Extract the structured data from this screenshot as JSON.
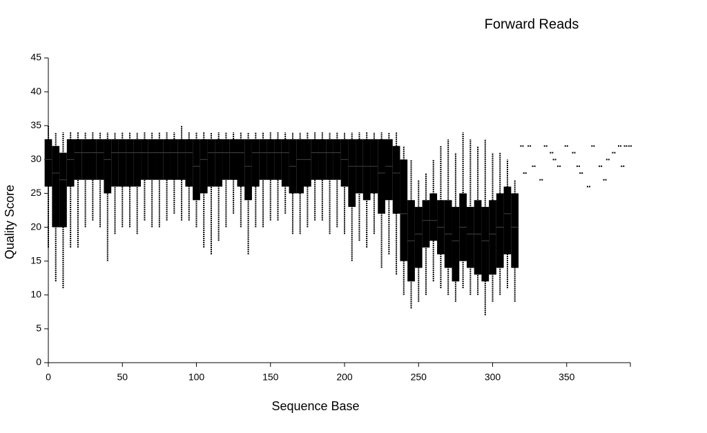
{
  "chart_data": {
    "type": "box",
    "title": "Forward Reads",
    "x_label": "Sequence Base",
    "y_label": "Quality Score",
    "xlim": [
      0,
      393
    ],
    "ylim": [
      0,
      45
    ],
    "xticks": [
      0,
      50,
      100,
      150,
      200,
      250,
      300,
      350
    ],
    "yticks": [
      0,
      5,
      10,
      15,
      20,
      25,
      30,
      35,
      40,
      45
    ],
    "color": "#000000",
    "boxes": {
      "x": [
        0,
        5,
        10,
        15,
        20,
        25,
        30,
        35,
        40,
        45,
        50,
        55,
        60,
        65,
        70,
        75,
        80,
        85,
        90,
        95,
        100,
        105,
        110,
        115,
        120,
        125,
        130,
        135,
        140,
        145,
        150,
        155,
        160,
        165,
        170,
        175,
        180,
        185,
        190,
        195,
        200,
        205,
        210,
        215,
        220,
        225,
        230,
        235,
        240,
        245,
        250,
        255,
        260,
        265,
        270,
        275,
        280,
        285,
        290,
        295,
        300,
        305,
        310,
        315
      ],
      "low": [
        17,
        12,
        11,
        17,
        17,
        20,
        21,
        20,
        15,
        19,
        20,
        20,
        19,
        21,
        20,
        20,
        21,
        22,
        21,
        21,
        20,
        17,
        16,
        18,
        20,
        22,
        20,
        16,
        20,
        20,
        21,
        21,
        22,
        19,
        19,
        20,
        21,
        21,
        19,
        20,
        19,
        15,
        18,
        17,
        19,
        14,
        16,
        13,
        10,
        8,
        9,
        10,
        12,
        11,
        10,
        9,
        11,
        10,
        10,
        7,
        9,
        10,
        11,
        9
      ],
      "q1": [
        26,
        20,
        20,
        26,
        27,
        27,
        27,
        27,
        25,
        26,
        26,
        26,
        26,
        27,
        27,
        27,
        27,
        27,
        27,
        26,
        24,
        25,
        26,
        26,
        27,
        27,
        26,
        24,
        26,
        27,
        27,
        27,
        26,
        25,
        25,
        26,
        27,
        27,
        27,
        27,
        26,
        23,
        25,
        24,
        25,
        22,
        24,
        22,
        15,
        12,
        14,
        17,
        18,
        16,
        14,
        12,
        15,
        14,
        13,
        12,
        13,
        14,
        16,
        14
      ],
      "median": [
        30,
        28,
        27,
        30,
        31,
        31,
        31,
        31,
        30,
        31,
        31,
        31,
        31,
        31,
        31,
        31,
        31,
        31,
        31,
        31,
        29,
        30,
        31,
        31,
        31,
        31,
        31,
        29,
        31,
        31,
        31,
        31,
        31,
        29,
        30,
        30,
        31,
        31,
        31,
        31,
        30,
        29,
        29,
        29,
        29,
        28,
        29,
        28,
        22,
        18,
        19,
        21,
        21,
        20,
        19,
        18,
        20,
        19,
        19,
        18,
        19,
        20,
        22,
        20
      ],
      "q3": [
        33,
        32,
        31,
        33,
        33,
        33,
        33,
        33,
        33,
        33,
        33,
        33,
        33,
        33,
        33,
        33,
        33,
        33,
        33,
        33,
        33,
        33,
        33,
        33,
        33,
        33,
        33,
        33,
        33,
        33,
        33,
        33,
        33,
        33,
        33,
        33,
        33,
        33,
        33,
        33,
        33,
        33,
        33,
        33,
        33,
        33,
        33,
        32,
        30,
        24,
        23,
        24,
        25,
        24,
        24,
        23,
        25,
        23,
        24,
        23,
        24,
        25,
        26,
        25
      ],
      "high": [
        35,
        34,
        34,
        34,
        34,
        34,
        34,
        34,
        34,
        34,
        34,
        34,
        34,
        34,
        34,
        34,
        34,
        34,
        35,
        34,
        34,
        34,
        34,
        34,
        34,
        34,
        34,
        34,
        34,
        34,
        34,
        34,
        34,
        34,
        34,
        34,
        34,
        34,
        34,
        34,
        34,
        34,
        34,
        34,
        34,
        34,
        34,
        34,
        32,
        30,
        27,
        28,
        30,
        32,
        33,
        31,
        34,
        33,
        32,
        33,
        31,
        31,
        30,
        27
      ]
    },
    "points": {
      "x": [
        320,
        322,
        325,
        328,
        333,
        336,
        340,
        342,
        345,
        350,
        355,
        358,
        360,
        365,
        368,
        373,
        376,
        378,
        382,
        386,
        388,
        390,
        393
      ],
      "values": [
        32,
        28,
        32,
        29,
        27,
        32,
        31,
        30,
        29,
        32,
        31,
        29,
        28,
        26,
        32,
        29,
        27,
        30,
        31,
        32,
        29,
        32,
        32
      ]
    }
  }
}
